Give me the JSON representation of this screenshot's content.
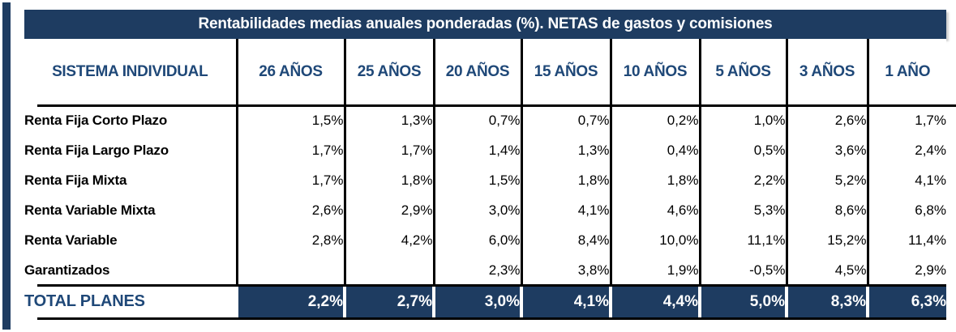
{
  "title": "Rentabilidades medias anuales ponderadas (%). NETAS de gastos y comisiones",
  "chart_data": {
    "type": "table",
    "title": "Rentabilidades medias anuales ponderadas (%). NETAS de gastos y comisiones",
    "corner_header": "SISTEMA INDIVIDUAL",
    "columns": [
      "26 AÑOS",
      "25 AÑOS",
      "20 AÑOS",
      "15 AÑOS",
      "10 AÑOS",
      "5 AÑOS",
      "3 AÑOS",
      "1 AÑO"
    ],
    "rows": [
      {
        "label": "Renta Fija Corto Plazo",
        "values": [
          "1,5%",
          "1,3%",
          "0,7%",
          "0,7%",
          "0,2%",
          "1,0%",
          "2,6%",
          "1,7%"
        ]
      },
      {
        "label": "Renta Fija Largo Plazo",
        "values": [
          "1,7%",
          "1,7%",
          "1,4%",
          "1,3%",
          "0,4%",
          "0,5%",
          "3,6%",
          "2,4%"
        ]
      },
      {
        "label": "Renta Fija Mixta",
        "values": [
          "1,7%",
          "1,8%",
          "1,5%",
          "1,8%",
          "1,8%",
          "2,2%",
          "5,2%",
          "4,1%"
        ]
      },
      {
        "label": "Renta Variable Mixta",
        "values": [
          "2,6%",
          "2,9%",
          "3,0%",
          "4,1%",
          "4,6%",
          "5,3%",
          "8,6%",
          "6,8%"
        ]
      },
      {
        "label": "Renta Variable",
        "values": [
          "2,8%",
          "4,2%",
          "6,0%",
          "8,4%",
          "10,0%",
          "11,1%",
          "15,2%",
          "11,4%"
        ]
      },
      {
        "label": "Garantizados",
        "values": [
          "",
          "",
          "2,3%",
          "3,8%",
          "1,9%",
          "-0,5%",
          "4,5%",
          "2,9%"
        ]
      }
    ],
    "total": {
      "label": "TOTAL PLANES",
      "values": [
        "2,2%",
        "2,7%",
        "3,0%",
        "4,1%",
        "4,4%",
        "5,0%",
        "8,3%",
        "6,3%"
      ]
    }
  },
  "colors": {
    "navy_background": "#1e3c61",
    "blue_text": "#1f4878",
    "grid_line": "#000000",
    "value_text": "#000000",
    "total_value_text": "#ffffff"
  }
}
